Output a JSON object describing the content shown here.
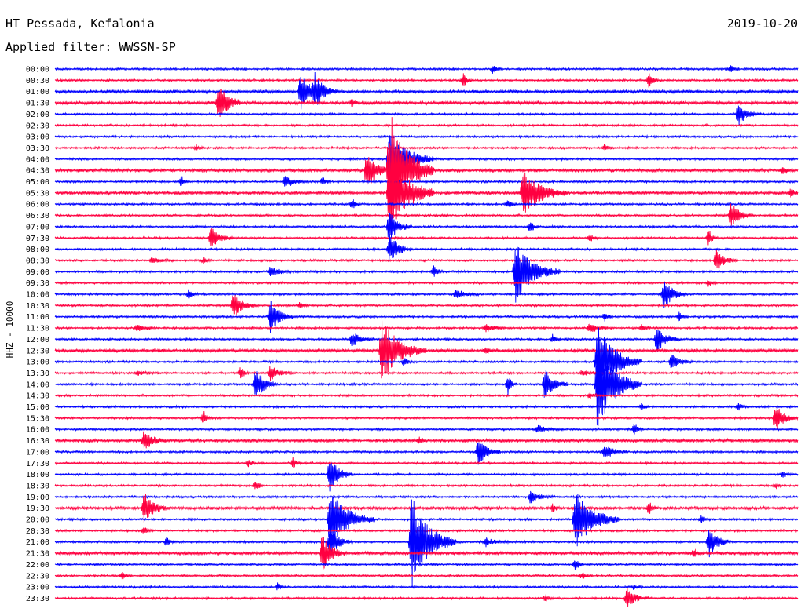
{
  "header": {
    "station": "HT Pessada, Kefalonia",
    "date": "2019-10-20",
    "filter": "Applied filter: WWSSN-SP"
  },
  "colors": {
    "odd_trace": "#0000ff",
    "even_trace": "#ff0040",
    "text": "#000000"
  },
  "chart_data": {
    "type": "line",
    "title": "HT Pessada, Kefalonia",
    "ylabel": "HHZ - 10000",
    "traces": [
      {
        "label": "00:00",
        "color": "blue",
        "noise": 1,
        "events": [
          [
            0.59,
            6,
            "s"
          ],
          [
            0.91,
            5,
            "s"
          ]
        ]
      },
      {
        "label": "00:30",
        "color": "red",
        "noise": 1,
        "events": [
          [
            0.55,
            9,
            "s"
          ],
          [
            0.8,
            10,
            "s"
          ]
        ]
      },
      {
        "label": "01:00",
        "color": "blue",
        "noise": 1.5,
        "events": [
          [
            0.33,
            26,
            "m"
          ],
          [
            0.35,
            22,
            "m"
          ]
        ]
      },
      {
        "label": "01:30",
        "color": "red",
        "noise": 1.5,
        "events": [
          [
            0.22,
            30,
            "m"
          ],
          [
            0.4,
            5,
            "s"
          ]
        ]
      },
      {
        "label": "02:00",
        "color": "blue",
        "noise": 1,
        "events": [
          [
            0.92,
            14,
            "m"
          ]
        ]
      },
      {
        "label": "02:30",
        "color": "red",
        "noise": 1,
        "events": []
      },
      {
        "label": "03:00",
        "color": "blue",
        "noise": 1,
        "events": []
      },
      {
        "label": "03:30",
        "color": "red",
        "noise": 1,
        "events": [
          [
            0.19,
            4,
            "s"
          ],
          [
            0.74,
            5,
            "s"
          ]
        ]
      },
      {
        "label": "04:00",
        "color": "blue",
        "noise": 1,
        "events": [
          [
            0.45,
            40,
            "l"
          ]
        ]
      },
      {
        "label": "04:30",
        "color": "red",
        "noise": 1.5,
        "events": [
          [
            0.42,
            28,
            "m"
          ],
          [
            0.45,
            80,
            "l"
          ],
          [
            0.98,
            6,
            "s"
          ]
        ]
      },
      {
        "label": "05:00",
        "color": "blue",
        "noise": 1,
        "events": [
          [
            0.17,
            8,
            "s"
          ],
          [
            0.31,
            8,
            "m"
          ],
          [
            0.36,
            6,
            "s"
          ]
        ]
      },
      {
        "label": "05:30",
        "color": "red",
        "noise": 1.5,
        "events": [
          [
            0.45,
            60,
            "l"
          ],
          [
            0.63,
            30,
            "l"
          ],
          [
            0.99,
            6,
            "s"
          ]
        ]
      },
      {
        "label": "06:00",
        "color": "blue",
        "noise": 1,
        "events": [
          [
            0.4,
            8,
            "s"
          ],
          [
            0.61,
            6,
            "s"
          ]
        ]
      },
      {
        "label": "06:30",
        "color": "red",
        "noise": 1,
        "events": [
          [
            0.91,
            16,
            "m"
          ]
        ]
      },
      {
        "label": "07:00",
        "color": "blue",
        "noise": 1,
        "events": [
          [
            0.45,
            20,
            "m"
          ],
          [
            0.64,
            8,
            "s"
          ]
        ]
      },
      {
        "label": "07:30",
        "color": "red",
        "noise": 1,
        "events": [
          [
            0.21,
            14,
            "m"
          ],
          [
            0.72,
            6,
            "s"
          ],
          [
            0.88,
            12,
            "s"
          ]
        ]
      },
      {
        "label": "08:00",
        "color": "blue",
        "noise": 1,
        "events": [
          [
            0.45,
            20,
            "m"
          ]
        ]
      },
      {
        "label": "08:30",
        "color": "red",
        "noise": 1,
        "events": [
          [
            0.13,
            4,
            "m"
          ],
          [
            0.2,
            4,
            "s"
          ],
          [
            0.89,
            14,
            "m"
          ]
        ]
      },
      {
        "label": "09:00",
        "color": "blue",
        "noise": 1,
        "events": [
          [
            0.29,
            6,
            "m"
          ],
          [
            0.51,
            8,
            "s"
          ],
          [
            0.62,
            40,
            "l"
          ]
        ]
      },
      {
        "label": "09:30",
        "color": "red",
        "noise": 1,
        "events": [
          [
            0.88,
            5,
            "s"
          ]
        ]
      },
      {
        "label": "10:00",
        "color": "blue",
        "noise": 1,
        "events": [
          [
            0.18,
            6,
            "s"
          ],
          [
            0.54,
            6,
            "m"
          ],
          [
            0.82,
            20,
            "m"
          ]
        ]
      },
      {
        "label": "10:30",
        "color": "red",
        "noise": 1,
        "events": [
          [
            0.24,
            18,
            "m"
          ],
          [
            0.33,
            6,
            "s"
          ]
        ]
      },
      {
        "label": "11:00",
        "color": "blue",
        "noise": 1,
        "events": [
          [
            0.29,
            22,
            "m"
          ],
          [
            0.74,
            6,
            "s"
          ],
          [
            0.84,
            6,
            "s"
          ]
        ]
      },
      {
        "label": "11:30",
        "color": "red",
        "noise": 1,
        "events": [
          [
            0.11,
            4,
            "m"
          ],
          [
            0.58,
            5,
            "m"
          ],
          [
            0.72,
            6,
            "m"
          ],
          [
            0.79,
            5,
            "s"
          ]
        ]
      },
      {
        "label": "12:00",
        "color": "blue",
        "noise": 1,
        "events": [
          [
            0.4,
            10,
            "m"
          ],
          [
            0.67,
            6,
            "s"
          ],
          [
            0.81,
            18,
            "m"
          ]
        ]
      },
      {
        "label": "12:30",
        "color": "red",
        "noise": 1.5,
        "events": [
          [
            0.44,
            40,
            "l"
          ],
          [
            0.58,
            4,
            "s"
          ]
        ]
      },
      {
        "label": "13:00",
        "color": "blue",
        "noise": 1,
        "events": [
          [
            0.47,
            6,
            "s"
          ],
          [
            0.73,
            50,
            "l"
          ],
          [
            0.83,
            10,
            "m"
          ]
        ]
      },
      {
        "label": "13:30",
        "color": "red",
        "noise": 1,
        "events": [
          [
            0.11,
            3,
            "m"
          ],
          [
            0.25,
            8,
            "s"
          ],
          [
            0.29,
            10,
            "m"
          ],
          [
            0.71,
            4,
            "m"
          ]
        ]
      },
      {
        "label": "14:00",
        "color": "blue",
        "noise": 1,
        "events": [
          [
            0.27,
            22,
            "m"
          ],
          [
            0.61,
            14,
            "s"
          ],
          [
            0.66,
            24,
            "m"
          ],
          [
            0.73,
            60,
            "l"
          ]
        ]
      },
      {
        "label": "14:30",
        "color": "red",
        "noise": 1,
        "events": [
          [
            0.72,
            4,
            "s"
          ]
        ]
      },
      {
        "label": "15:00",
        "color": "blue",
        "noise": 1,
        "events": [
          [
            0.79,
            5,
            "s"
          ],
          [
            0.92,
            5,
            "s"
          ]
        ]
      },
      {
        "label": "15:30",
        "color": "red",
        "noise": 1,
        "events": [
          [
            0.2,
            10,
            "s"
          ],
          [
            0.97,
            18,
            "m"
          ]
        ]
      },
      {
        "label": "16:00",
        "color": "blue",
        "noise": 1,
        "events": [
          [
            0.65,
            5,
            "m"
          ],
          [
            0.78,
            8,
            "s"
          ]
        ]
      },
      {
        "label": "16:30",
        "color": "red",
        "noise": 1.5,
        "events": [
          [
            0.12,
            14,
            "m"
          ],
          [
            0.49,
            5,
            "s"
          ]
        ]
      },
      {
        "label": "17:00",
        "color": "blue",
        "noise": 1,
        "events": [
          [
            0.57,
            18,
            "m"
          ],
          [
            0.74,
            10,
            "m"
          ]
        ]
      },
      {
        "label": "17:30",
        "color": "red",
        "noise": 1,
        "events": [
          [
            0.26,
            5,
            "s"
          ],
          [
            0.32,
            8,
            "s"
          ]
        ]
      },
      {
        "label": "18:00",
        "color": "blue",
        "noise": 1,
        "events": [
          [
            0.37,
            26,
            "m"
          ],
          [
            0.98,
            5,
            "s"
          ]
        ]
      },
      {
        "label": "18:30",
        "color": "red",
        "noise": 1,
        "events": [
          [
            0.27,
            8,
            "s"
          ],
          [
            0.97,
            4,
            "s"
          ]
        ]
      },
      {
        "label": "19:00",
        "color": "blue",
        "noise": 1,
        "events": [
          [
            0.64,
            8,
            "m"
          ]
        ]
      },
      {
        "label": "19:30",
        "color": "red",
        "noise": 1.5,
        "events": [
          [
            0.12,
            22,
            "m"
          ],
          [
            0.67,
            4,
            "s"
          ],
          [
            0.8,
            8,
            "s"
          ]
        ]
      },
      {
        "label": "20:00",
        "color": "blue",
        "noise": 1,
        "events": [
          [
            0.37,
            40,
            "l"
          ],
          [
            0.7,
            40,
            "l"
          ],
          [
            0.87,
            6,
            "s"
          ]
        ]
      },
      {
        "label": "20:30",
        "color": "red",
        "noise": 1,
        "events": [
          [
            0.12,
            5,
            "s"
          ]
        ]
      },
      {
        "label": "21:00",
        "color": "blue",
        "noise": 1,
        "events": [
          [
            0.15,
            6,
            "s"
          ],
          [
            0.37,
            20,
            "m"
          ],
          [
            0.48,
            60,
            "l"
          ],
          [
            0.58,
            6,
            "m"
          ],
          [
            0.88,
            20,
            "m"
          ]
        ]
      },
      {
        "label": "21:30",
        "color": "red",
        "noise": 1.5,
        "events": [
          [
            0.36,
            24,
            "m"
          ],
          [
            0.86,
            6,
            "s"
          ]
        ]
      },
      {
        "label": "22:00",
        "color": "blue",
        "noise": 1,
        "events": [
          [
            0.7,
            10,
            "s"
          ]
        ]
      },
      {
        "label": "22:30",
        "color": "red",
        "noise": 1,
        "events": [
          [
            0.09,
            5,
            "s"
          ],
          [
            0.71,
            5,
            "s"
          ]
        ]
      },
      {
        "label": "23:00",
        "color": "blue",
        "noise": 1,
        "events": [
          [
            0.3,
            5,
            "s"
          ],
          [
            0.78,
            4,
            "s"
          ]
        ]
      },
      {
        "label": "23:30",
        "color": "red",
        "noise": 1,
        "events": [
          [
            0.66,
            5,
            "s"
          ],
          [
            0.77,
            12,
            "m"
          ]
        ]
      }
    ]
  }
}
